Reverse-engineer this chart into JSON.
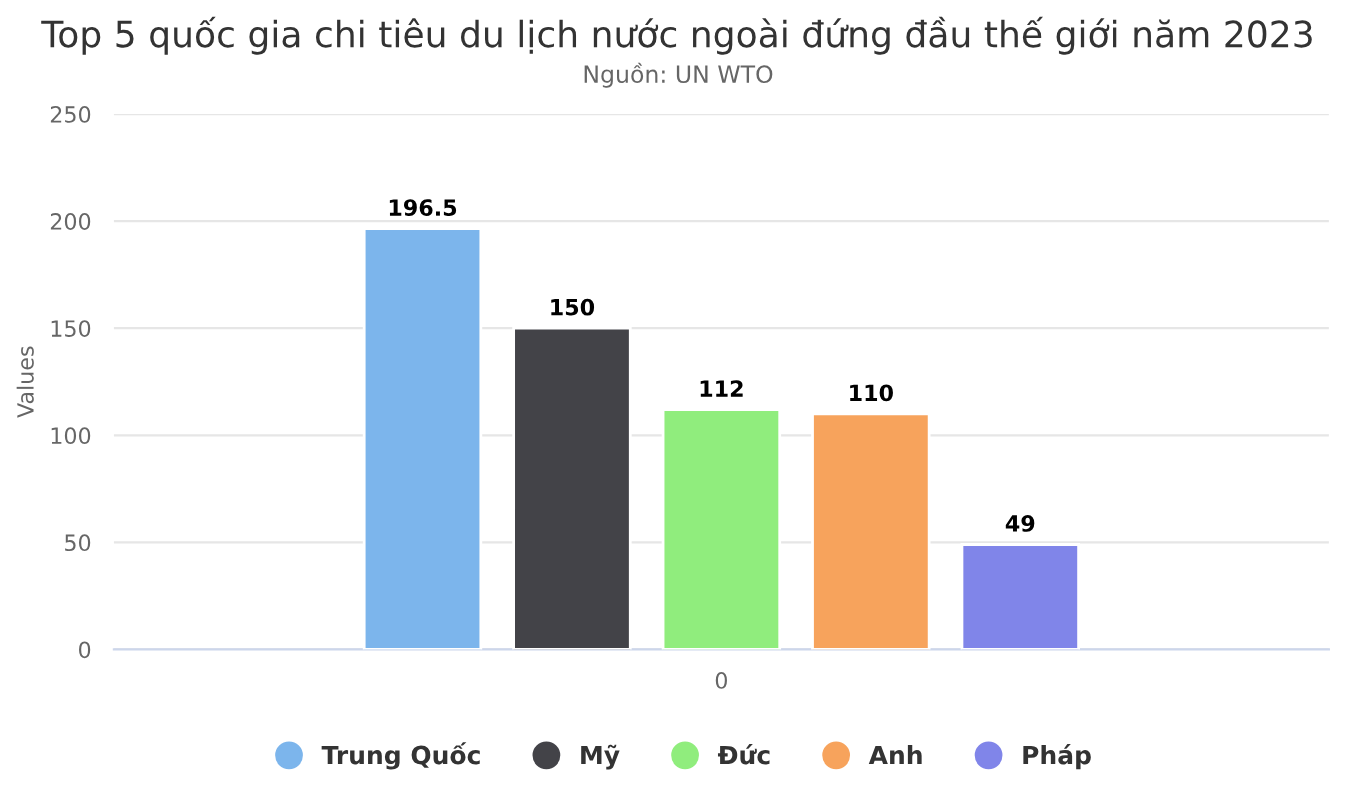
{
  "chart_data": {
    "type": "bar",
    "title": "Top 5 quốc gia chi tiêu du lịch nước ngoài đứng đầu thế giới năm 2023",
    "subtitle": "Nguồn: UN WTO",
    "ylabel": "Values",
    "categories": [
      "0"
    ],
    "series": [
      {
        "name": "Trung Quốc",
        "color": "#7cb5ec",
        "values": [
          196.5
        ]
      },
      {
        "name": "Mỹ",
        "color": "#434348",
        "values": [
          150
        ]
      },
      {
        "name": "Đức",
        "color": "#90ed7d",
        "values": [
          112
        ]
      },
      {
        "name": "Anh",
        "color": "#f7a35c",
        "values": [
          110
        ]
      },
      {
        "name": "Pháp",
        "color": "#8085e9",
        "values": [
          49
        ]
      }
    ],
    "ylim": [
      0,
      250
    ],
    "yticks": [
      0,
      50,
      100,
      150,
      200,
      250
    ],
    "grid": "y",
    "legend": "bottom",
    "data_labels": true
  }
}
